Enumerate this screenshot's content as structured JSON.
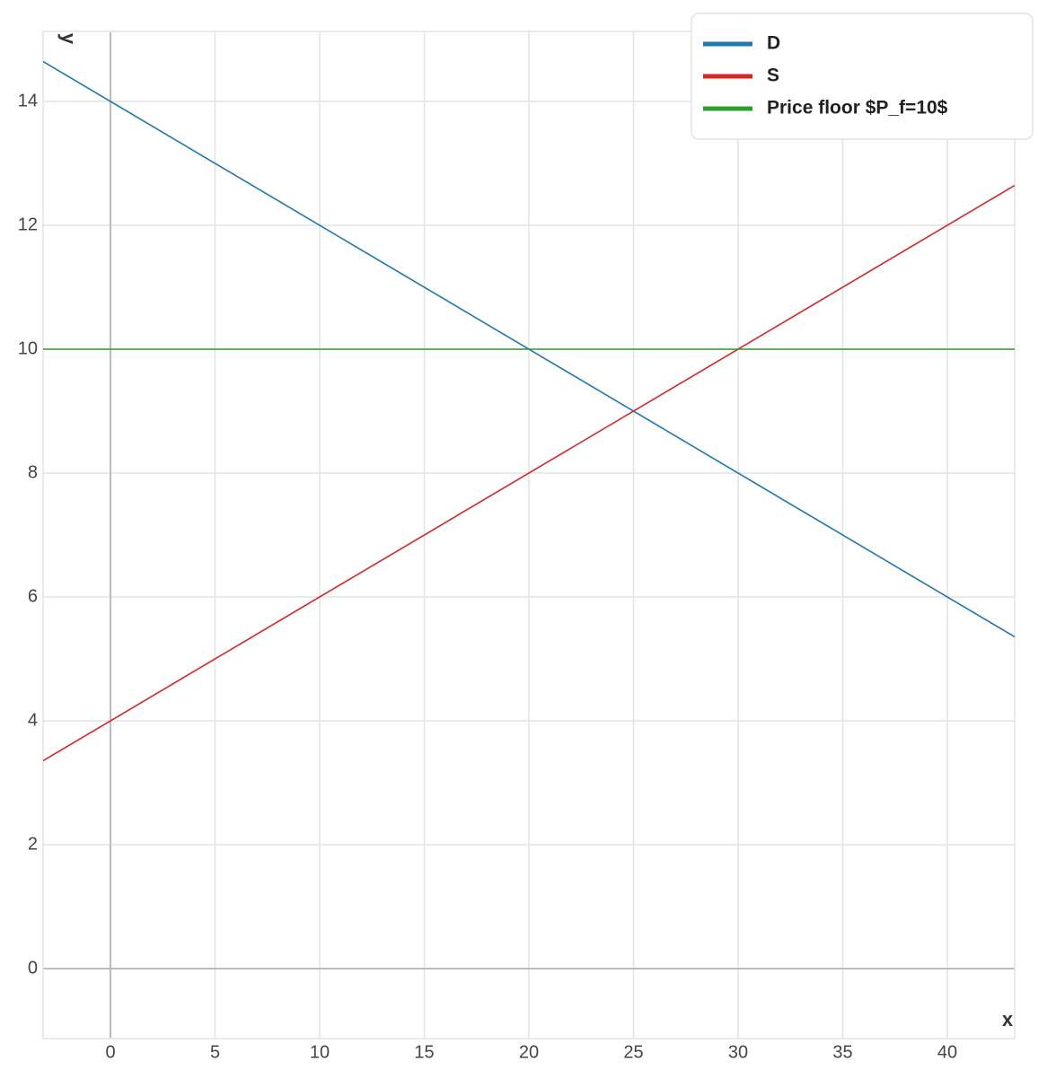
{
  "chart_data": {
    "type": "line",
    "x_label": "x",
    "y_label": "y",
    "x": [
      -3.22,
      43.22
    ],
    "series": [
      {
        "name": "D",
        "color": "#1f77b4",
        "values": [
          14.644,
          5.356
        ]
      },
      {
        "name": "S",
        "color": "#d62728",
        "values": [
          3.356,
          12.644
        ]
      },
      {
        "name": "Price floor $P_f=10$",
        "color": "#2ca02c",
        "values": [
          10,
          10
        ]
      }
    ],
    "xlim": [
      -3.22,
      43.22
    ],
    "ylim": [
      -1.13,
      15.13
    ],
    "xticks": [
      0,
      5,
      10,
      15,
      20,
      25,
      30,
      35,
      40
    ],
    "yticks": [
      0,
      2,
      4,
      6,
      8,
      10,
      12,
      14
    ],
    "grid": true,
    "legend": "upper right"
  }
}
